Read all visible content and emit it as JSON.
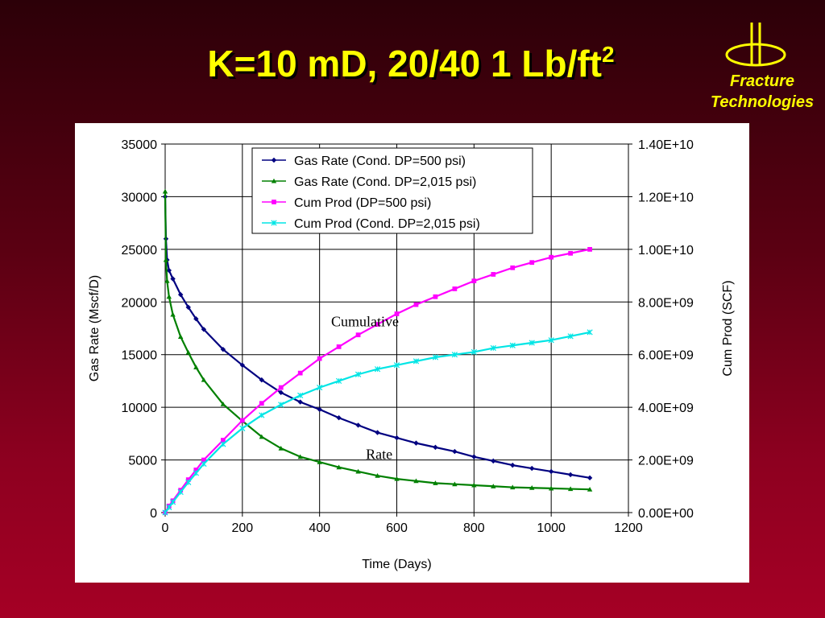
{
  "slide": {
    "title_main": "K=10 mD, 20/40 1 Lb/ft",
    "title_sup": "2",
    "logo_line1": "Fracture",
    "logo_line2": "Technologies",
    "background_top": "#2c0008",
    "background_bottom": "#a50025",
    "title_color": "#ffff00"
  },
  "chart_data": {
    "type": "scatter",
    "xlabel": "Time (Days)",
    "ylabel": "Gas Rate (Mscf/D)",
    "y2label": "Cum Prod (SCF)",
    "xlim": [
      0,
      1200
    ],
    "ylim": [
      0,
      35000
    ],
    "y2lim": [
      0,
      14000000000
    ],
    "x_ticks": [
      "0",
      "200",
      "400",
      "600",
      "800",
      "1000",
      "1200"
    ],
    "y_ticks": [
      "0",
      "5000",
      "10000",
      "15000",
      "20000",
      "25000",
      "30000",
      "35000"
    ],
    "y2_ticks": [
      "0.00E+00",
      "2.00E+09",
      "4.00E+09",
      "6.00E+09",
      "8.00E+09",
      "1.00E+10",
      "1.20E+10",
      "1.40E+10"
    ],
    "grid": true,
    "legend_position": "top-center",
    "annotations": [
      {
        "text": "Cumulative",
        "x": 430,
        "y": 17700
      },
      {
        "text": "Rate",
        "x": 520,
        "y": 5100
      }
    ],
    "series": [
      {
        "name": "Gas Rate (Cond. DP=500 psi)",
        "axis": "left",
        "color": "#000080",
        "marker": "diamond",
        "x": [
          0,
          2,
          5,
          10,
          20,
          40,
          60,
          80,
          100,
          150,
          200,
          250,
          300,
          350,
          400,
          450,
          500,
          550,
          600,
          650,
          700,
          750,
          800,
          850,
          900,
          950,
          1000,
          1050,
          1100
        ],
        "y": [
          30000,
          26000,
          24000,
          23000,
          22200,
          20700,
          19500,
          18400,
          17400,
          15500,
          14000,
          12600,
          11400,
          10500,
          9800,
          9000,
          8300,
          7600,
          7100,
          6600,
          6200,
          5800,
          5300,
          4900,
          4500,
          4200,
          3900,
          3600,
          3300
        ]
      },
      {
        "name": "Gas Rate (Cond. DP=2,015 psi)",
        "axis": "left",
        "color": "#008000",
        "marker": "triangle",
        "x": [
          0,
          2,
          5,
          10,
          20,
          40,
          60,
          80,
          100,
          150,
          200,
          250,
          300,
          350,
          400,
          450,
          500,
          550,
          600,
          650,
          700,
          750,
          800,
          850,
          900,
          950,
          1000,
          1050,
          1100
        ],
        "y": [
          30500,
          24000,
          22000,
          20500,
          18800,
          16700,
          15200,
          13800,
          12600,
          10300,
          8700,
          7200,
          6100,
          5300,
          4800,
          4300,
          3900,
          3500,
          3200,
          3000,
          2800,
          2700,
          2600,
          2500,
          2400,
          2350,
          2300,
          2250,
          2200
        ]
      },
      {
        "name": "Cum Prod (DP=500 psi)",
        "axis": "right",
        "color": "#ff00ff",
        "marker": "square",
        "x": [
          0,
          10,
          20,
          40,
          60,
          80,
          100,
          150,
          200,
          250,
          300,
          350,
          400,
          450,
          500,
          550,
          600,
          650,
          700,
          750,
          800,
          850,
          900,
          950,
          1000,
          1050,
          1100
        ],
        "y": [
          0,
          250000000,
          450000000,
          850000000,
          1250000000,
          1620000000,
          2000000000,
          2750000000,
          3500000000,
          4150000000,
          4750000000,
          5300000000,
          5850000000,
          6300000000,
          6750000000,
          7150000000,
          7550000000,
          7900000000,
          8200000000,
          8500000000,
          8800000000,
          9050000000,
          9300000000,
          9500000000,
          9700000000,
          9850000000,
          10000000000
        ]
      },
      {
        "name": "Cum Prod (Cond. DP=2,015 psi)",
        "axis": "right",
        "color": "#00e5e5",
        "marker": "star",
        "x": [
          0,
          10,
          20,
          40,
          60,
          80,
          100,
          150,
          200,
          250,
          300,
          350,
          400,
          450,
          500,
          550,
          600,
          650,
          700,
          750,
          800,
          850,
          900,
          950,
          1000,
          1050,
          1100
        ],
        "y": [
          0,
          200000000,
          400000000,
          780000000,
          1150000000,
          1500000000,
          1850000000,
          2600000000,
          3200000000,
          3700000000,
          4100000000,
          4450000000,
          4750000000,
          5000000000,
          5250000000,
          5450000000,
          5600000000,
          5750000000,
          5900000000,
          6000000000,
          6100000000,
          6250000000,
          6350000000,
          6450000000,
          6550000000,
          6700000000,
          6850000000
        ]
      }
    ]
  }
}
